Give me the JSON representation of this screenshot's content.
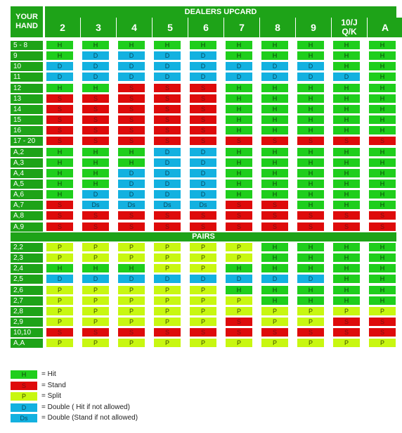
{
  "header": {
    "your_hand": "YOUR HAND",
    "dealers_upcard": "DEALERS UPCARD",
    "upcards": [
      "2",
      "3",
      "4",
      "5",
      "6",
      "7",
      "8",
      "9",
      "10/J Q/K",
      "A"
    ]
  },
  "pairs_label": "PAIRS",
  "rows": [
    {
      "hand": "5 - 8",
      "cells": [
        "H",
        "H",
        "H",
        "H",
        "H",
        "H",
        "H",
        "H",
        "H",
        "H"
      ]
    },
    {
      "hand": "9",
      "cells": [
        "H",
        "D",
        "D",
        "D",
        "D",
        "H",
        "H",
        "H",
        "H",
        "H"
      ]
    },
    {
      "hand": "10",
      "cells": [
        "D",
        "D",
        "D",
        "D",
        "D",
        "D",
        "D",
        "D",
        "H",
        "H"
      ]
    },
    {
      "hand": "11",
      "cells": [
        "D",
        "D",
        "D",
        "D",
        "D",
        "D",
        "D",
        "D",
        "D",
        "H"
      ]
    },
    {
      "hand": "12",
      "cells": [
        "H",
        "H",
        "S",
        "S",
        "S",
        "H",
        "H",
        "H",
        "H",
        "H"
      ]
    },
    {
      "hand": "13",
      "cells": [
        "S",
        "S",
        "S",
        "S",
        "S",
        "H",
        "H",
        "H",
        "H",
        "H"
      ]
    },
    {
      "hand": "14",
      "cells": [
        "S",
        "S",
        "S",
        "S",
        "S",
        "H",
        "H",
        "H",
        "H",
        "H"
      ]
    },
    {
      "hand": "15",
      "cells": [
        "S",
        "S",
        "S",
        "S",
        "S",
        "H",
        "H",
        "H",
        "H",
        "H"
      ]
    },
    {
      "hand": "16",
      "cells": [
        "S",
        "S",
        "S",
        "S",
        "S",
        "H",
        "H",
        "H",
        "H",
        "H"
      ]
    },
    {
      "hand": "17 - 20",
      "cells": [
        "S",
        "S",
        "S",
        "S",
        "S",
        "S",
        "S",
        "S",
        "S",
        "S"
      ]
    },
    {
      "hand": "A,2",
      "cells": [
        "H",
        "H",
        "H",
        "D",
        "D",
        "H",
        "H",
        "H",
        "H",
        "H"
      ]
    },
    {
      "hand": "A,3",
      "cells": [
        "H",
        "H",
        "H",
        "D",
        "D",
        "H",
        "H",
        "H",
        "H",
        "H"
      ]
    },
    {
      "hand": "A,4",
      "cells": [
        "H",
        "H",
        "D",
        "D",
        "D",
        "H",
        "H",
        "H",
        "H",
        "H"
      ]
    },
    {
      "hand": "A,5",
      "cells": [
        "H",
        "H",
        "D",
        "D",
        "D",
        "H",
        "H",
        "H",
        "H",
        "H"
      ]
    },
    {
      "hand": "A,6",
      "cells": [
        "H",
        "D",
        "D",
        "D",
        "D",
        "H",
        "H",
        "H",
        "H",
        "H"
      ]
    },
    {
      "hand": "A,7",
      "cells": [
        "S",
        "Ds",
        "Ds",
        "Ds",
        "Ds",
        "S",
        "S",
        "H",
        "H",
        "H"
      ]
    },
    {
      "hand": "A,8",
      "cells": [
        "S",
        "S",
        "S",
        "S",
        "S",
        "S",
        "S",
        "S",
        "S",
        "S"
      ]
    },
    {
      "hand": "A,9",
      "cells": [
        "S",
        "S",
        "S",
        "S",
        "S",
        "S",
        "S",
        "S",
        "S",
        "S"
      ]
    }
  ],
  "pair_rows": [
    {
      "hand": "2,2",
      "cells": [
        "P",
        "P",
        "P",
        "P",
        "P",
        "P",
        "H",
        "H",
        "H",
        "H"
      ]
    },
    {
      "hand": "2,3",
      "cells": [
        "P",
        "P",
        "P",
        "P",
        "P",
        "P",
        "H",
        "H",
        "H",
        "H"
      ]
    },
    {
      "hand": "2,4",
      "cells": [
        "H",
        "H",
        "H",
        "P",
        "P",
        "H",
        "H",
        "H",
        "H",
        "H"
      ]
    },
    {
      "hand": "2,5",
      "cells": [
        "D",
        "D",
        "D",
        "D",
        "D",
        "D",
        "D",
        "D",
        "H",
        "H"
      ]
    },
    {
      "hand": "2,6",
      "cells": [
        "P",
        "P",
        "P",
        "P",
        "P",
        "H",
        "H",
        "H",
        "H",
        "H"
      ]
    },
    {
      "hand": "2,7",
      "cells": [
        "P",
        "P",
        "P",
        "P",
        "P",
        "P",
        "H",
        "H",
        "H",
        "H"
      ]
    },
    {
      "hand": "2,8",
      "cells": [
        "P",
        "P",
        "P",
        "P",
        "P",
        "P",
        "P",
        "P",
        "P",
        "P"
      ]
    },
    {
      "hand": "2,9",
      "cells": [
        "P",
        "P",
        "P",
        "P",
        "P",
        "S",
        "P",
        "P",
        "S",
        "S"
      ]
    },
    {
      "hand": "10,10",
      "cells": [
        "S",
        "S",
        "S",
        "S",
        "S",
        "S",
        "S",
        "S",
        "S",
        "S"
      ]
    },
    {
      "hand": "A,A",
      "cells": [
        "P",
        "P",
        "P",
        "P",
        "P",
        "P",
        "P",
        "P",
        "P",
        "P"
      ]
    }
  ],
  "legend": [
    {
      "code": "H",
      "text": "= Hit"
    },
    {
      "code": "S",
      "text": "= Stand"
    },
    {
      "code": "P",
      "text": "= Split"
    },
    {
      "code": "D",
      "text": "= Double ( Hit if not allowed)"
    },
    {
      "code": "Ds",
      "text": "= Double (Stand if not allowed)"
    }
  ],
  "colors": {
    "header_green": "#1ea318",
    "hit": "#1fce1c",
    "stand": "#de0b0b",
    "split": "#c8f711",
    "double": "#13b1e0"
  }
}
